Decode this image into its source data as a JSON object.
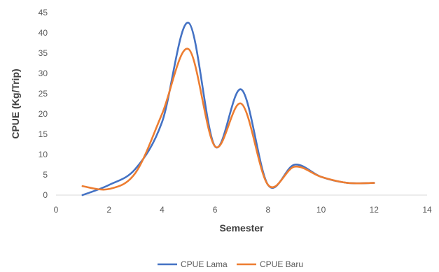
{
  "chart_data": {
    "type": "line",
    "title": "",
    "xlabel": "Semester",
    "ylabel": "CPUE (Kg/Trip)",
    "xlim": [
      0,
      14
    ],
    "ylim": [
      0,
      45
    ],
    "x_ticks": [
      0,
      2,
      4,
      6,
      8,
      10,
      12,
      14
    ],
    "y_ticks": [
      0,
      5,
      10,
      15,
      20,
      25,
      30,
      35,
      40,
      45
    ],
    "grid": false,
    "legend_position": "bottom",
    "smooth": true,
    "series": [
      {
        "name": "CPUE Lama",
        "color": "#4472C4",
        "x": [
          1,
          2,
          3,
          4,
          5,
          6,
          7,
          8,
          9,
          10,
          11,
          12
        ],
        "y": [
          0,
          2.5,
          6.5,
          18,
          42.5,
          12,
          26,
          2.5,
          7.5,
          4.5,
          3,
          3
        ]
      },
      {
        "name": "CPUE Baru",
        "color": "#ED7D31",
        "x": [
          1,
          2,
          3,
          4,
          5,
          6,
          7,
          8,
          9,
          10,
          11,
          12
        ],
        "y": [
          2.2,
          1.5,
          5.5,
          20,
          36,
          12,
          22.5,
          2.5,
          7,
          4.5,
          3,
          3
        ]
      }
    ]
  }
}
